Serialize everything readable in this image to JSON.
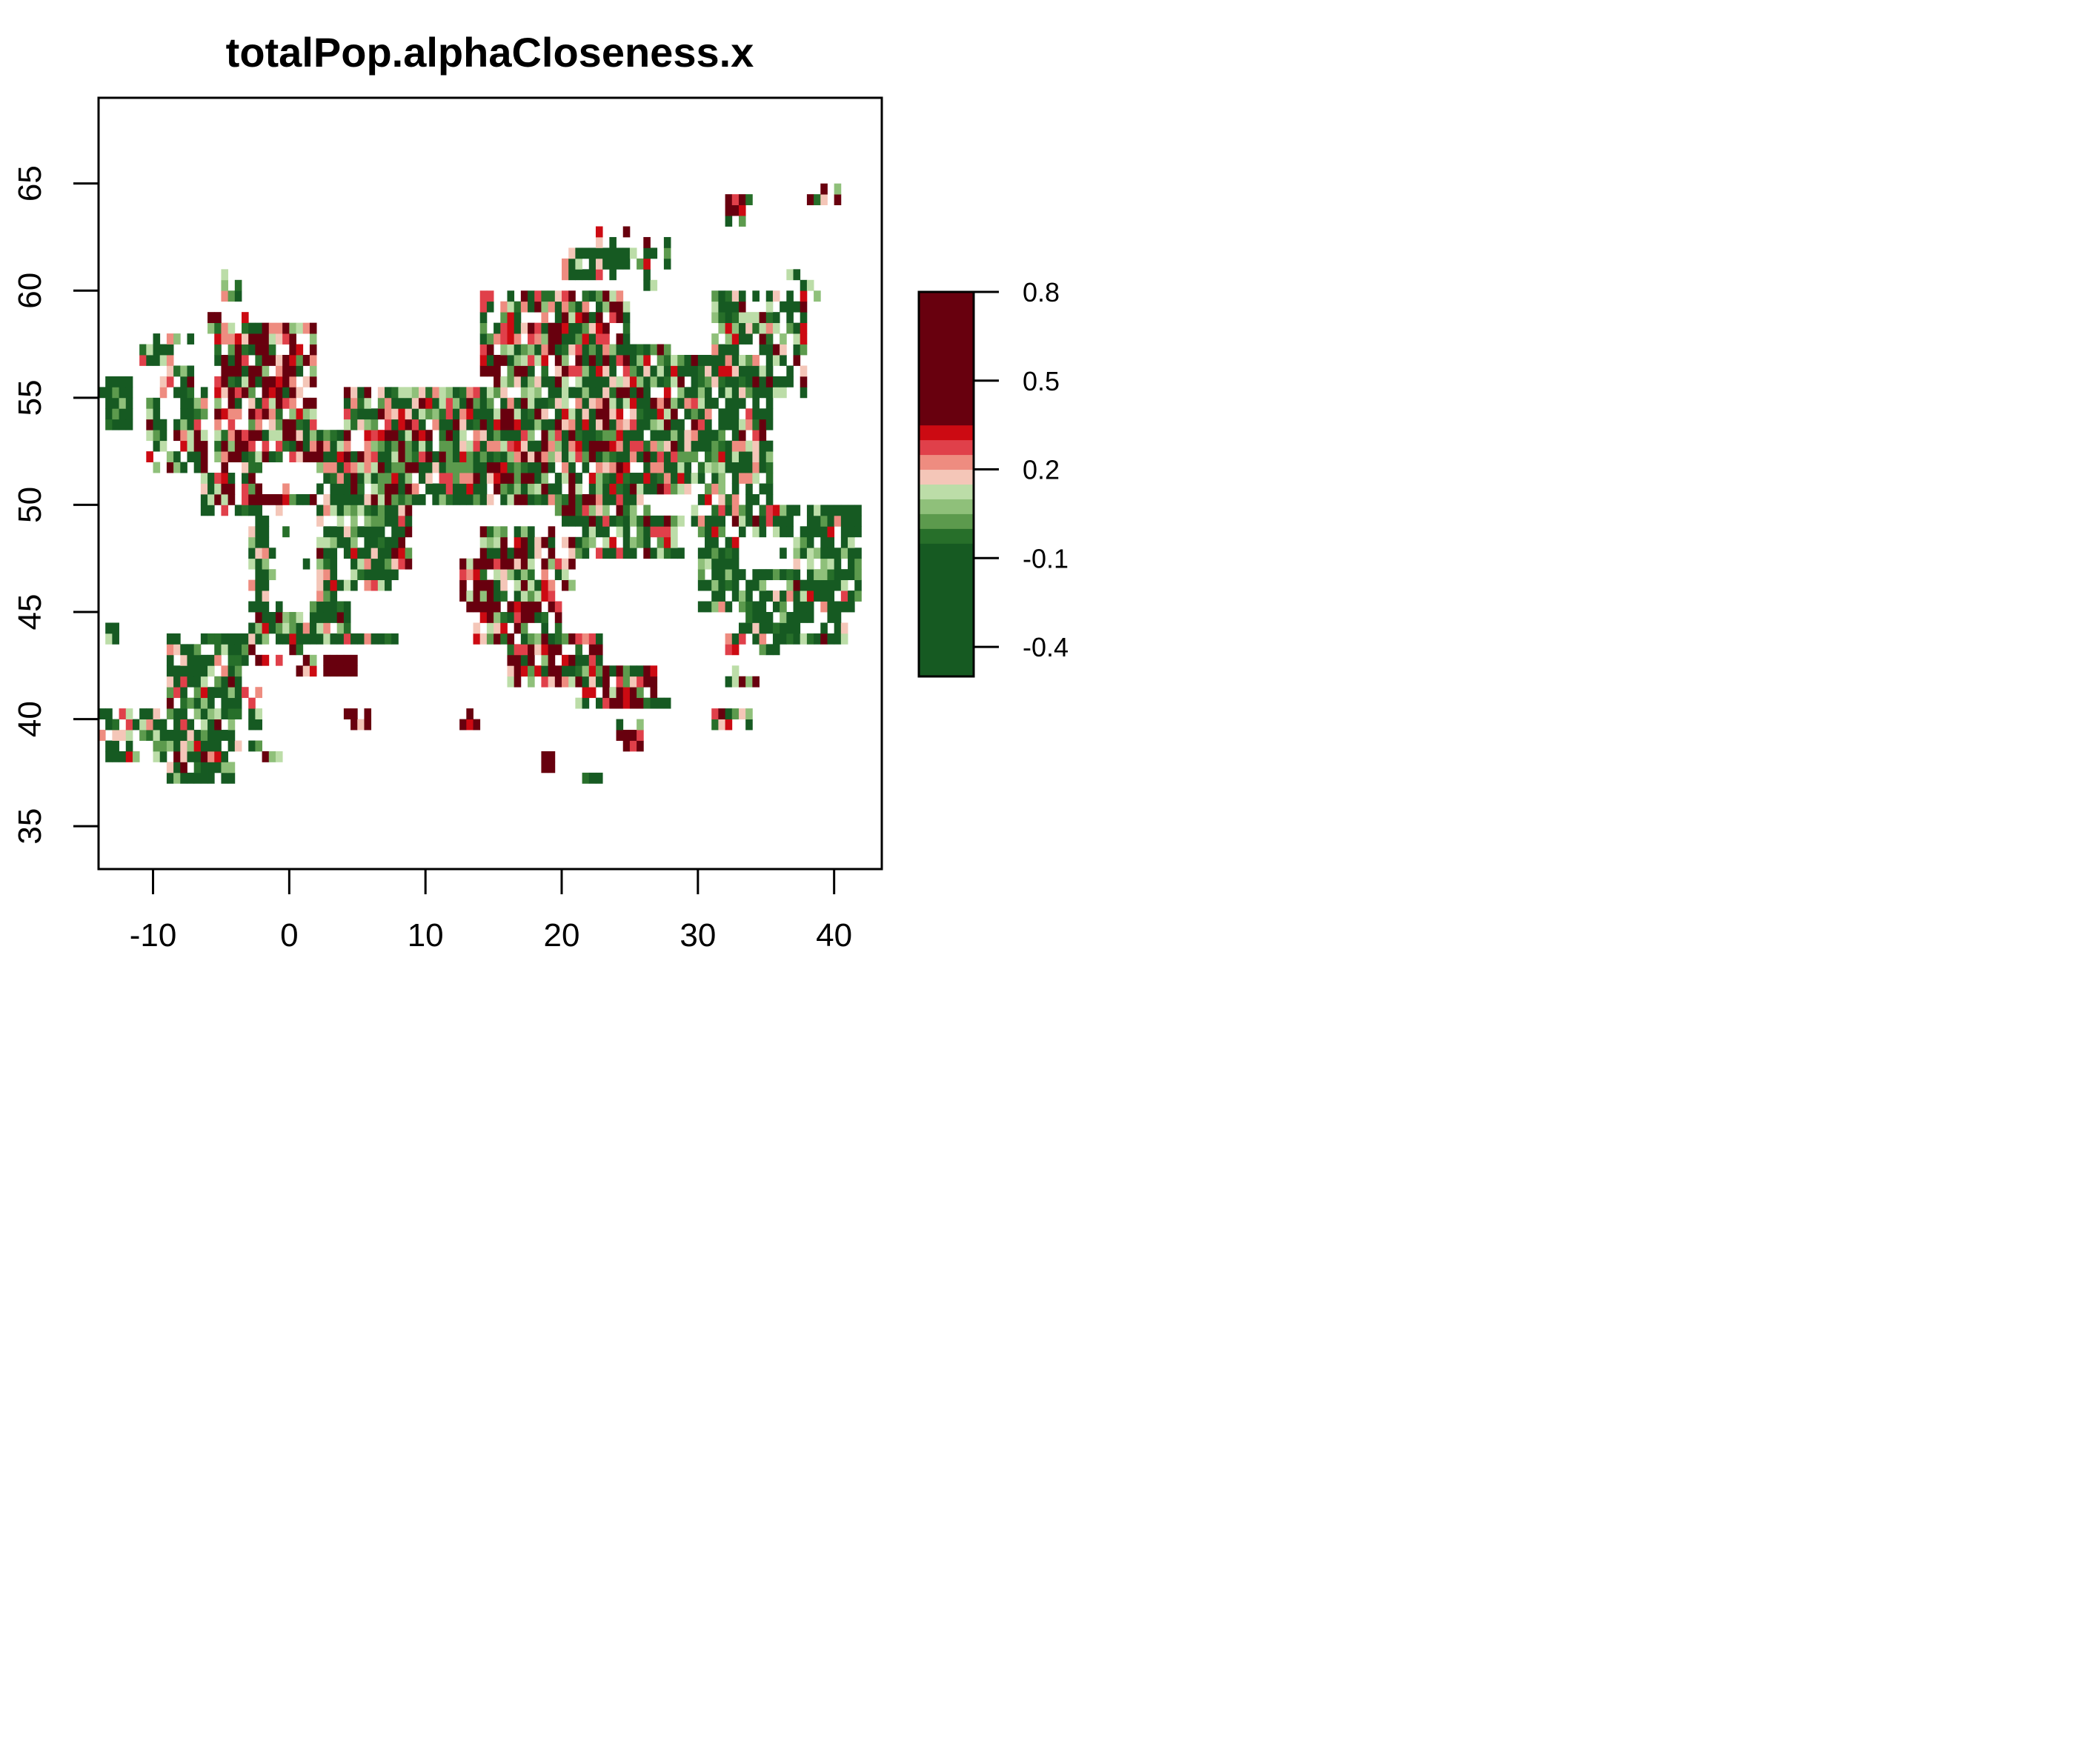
{
  "chart_data": {
    "type": "heatmap",
    "title": "totalPop.alphaCloseness.x",
    "xlabel": "",
    "ylabel": "",
    "xlim": [
      -14,
      43.5
    ],
    "ylim": [
      33,
      69
    ],
    "x_ticks": [
      -10,
      0,
      10,
      20,
      30,
      40
    ],
    "x_tick_labels": [
      "-10",
      "0",
      "10",
      "20",
      "30",
      "40"
    ],
    "y_ticks": [
      35,
      40,
      45,
      50,
      55,
      60,
      65
    ],
    "y_tick_labels": [
      "35",
      "40",
      "45",
      "50",
      "55",
      "60",
      "65"
    ],
    "cell_size_deg": 0.5,
    "grid": false,
    "legend": {
      "placement": "right",
      "min": -0.5,
      "max": 0.8,
      "ticks": [
        0.8,
        0.5,
        0.2,
        -0.1,
        -0.4
      ],
      "tick_labels": [
        "0.8",
        "0.5",
        "0.2",
        "-0.1",
        "-0.4"
      ],
      "bins": [
        {
          "from": -0.5,
          "to": -0.05,
          "color": "#165a22"
        },
        {
          "from": -0.05,
          "to": 0.0,
          "color": "#276f2a"
        },
        {
          "from": 0.0,
          "to": 0.05,
          "color": "#5c9a4d"
        },
        {
          "from": 0.05,
          "to": 0.1,
          "color": "#8fc07a"
        },
        {
          "from": 0.1,
          "to": 0.15,
          "color": "#bcdda8"
        },
        {
          "from": 0.15,
          "to": 0.2,
          "color": "#f4c6b8"
        },
        {
          "from": 0.2,
          "to": 0.25,
          "color": "#ee8c80"
        },
        {
          "from": 0.25,
          "to": 0.3,
          "color": "#e0404a"
        },
        {
          "from": 0.3,
          "to": 0.35,
          "color": "#cc0a12"
        },
        {
          "from": 0.35,
          "to": 0.8,
          "color": "#68000e"
        }
      ]
    }
  }
}
